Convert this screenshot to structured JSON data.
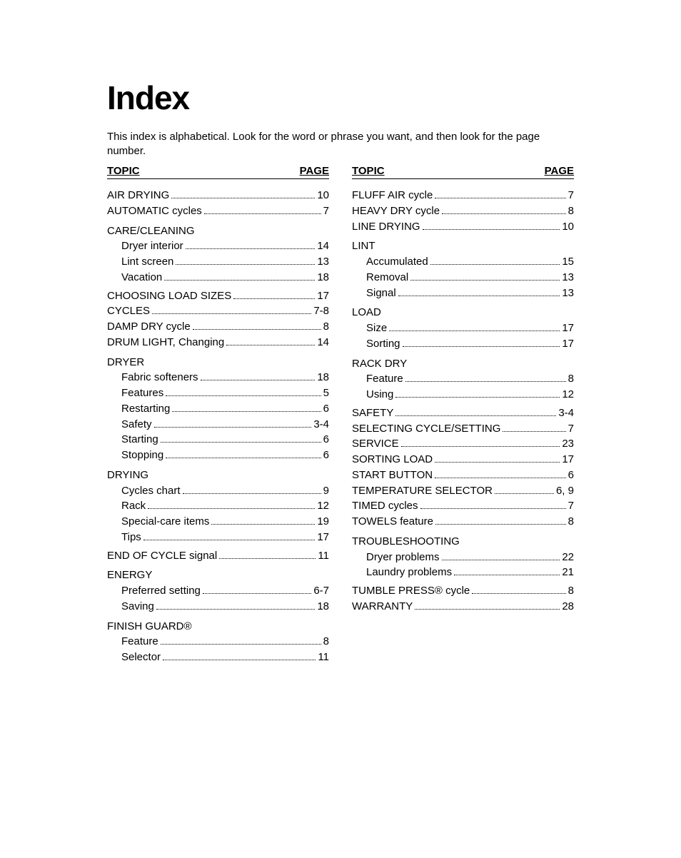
{
  "title": "Index",
  "intro": "This index is alphabetical. Look for the word or phrase you want, and then look for the page number.",
  "header": {
    "topic": "TOPIC",
    "page": "PAGE"
  },
  "left": [
    {
      "t": "entry",
      "label": "AIR DRYING",
      "page": "10"
    },
    {
      "t": "entry",
      "label": "AUTOMATIC cycles",
      "page": "7"
    },
    {
      "t": "head",
      "label": "CARE/CLEANING"
    },
    {
      "t": "sub",
      "label": "Dryer interior",
      "page": "14"
    },
    {
      "t": "sub",
      "label": "Lint screen",
      "page": "13"
    },
    {
      "t": "sub",
      "label": "Vacation",
      "page": "18"
    },
    {
      "t": "entry",
      "label": "CHOOSING LOAD SIZES",
      "page": "17"
    },
    {
      "t": "entry",
      "label": "CYCLES",
      "page": "7-8"
    },
    {
      "t": "entry",
      "label": "DAMP DRY cycle",
      "page": "8"
    },
    {
      "t": "entry",
      "label": "DRUM LIGHT, Changing",
      "page": "14"
    },
    {
      "t": "head",
      "label": "DRYER"
    },
    {
      "t": "sub",
      "label": "Fabric softeners",
      "page": "18"
    },
    {
      "t": "sub",
      "label": "Features",
      "page": "5"
    },
    {
      "t": "sub",
      "label": "Restarting",
      "page": "6"
    },
    {
      "t": "sub",
      "label": "Safety",
      "page": "3-4"
    },
    {
      "t": "sub",
      "label": "Starting",
      "page": "6"
    },
    {
      "t": "sub",
      "label": "Stopping",
      "page": "6"
    },
    {
      "t": "head",
      "label": "DRYING"
    },
    {
      "t": "sub",
      "label": "Cycles chart",
      "page": "9"
    },
    {
      "t": "sub",
      "label": "Rack",
      "page": "12"
    },
    {
      "t": "sub",
      "label": "Special-care items",
      "page": "19"
    },
    {
      "t": "sub",
      "label": "Tips",
      "page": "17"
    },
    {
      "t": "entry",
      "label": "END OF CYCLE signal",
      "page": "11"
    },
    {
      "t": "head",
      "label": "ENERGY"
    },
    {
      "t": "sub",
      "label": "Preferred setting",
      "page": "6-7"
    },
    {
      "t": "sub",
      "label": "Saving",
      "page": "18"
    },
    {
      "t": "head",
      "label": "FINISH GUARD®"
    },
    {
      "t": "sub",
      "label": "Feature",
      "page": "8"
    },
    {
      "t": "sub",
      "label": "Selector",
      "page": "11"
    }
  ],
  "right": [
    {
      "t": "entry",
      "label": "FLUFF AIR cycle",
      "page": "7"
    },
    {
      "t": "entry",
      "label": "HEAVY DRY cycle",
      "page": "8"
    },
    {
      "t": "entry",
      "label": "LINE DRYING",
      "page": "10"
    },
    {
      "t": "head",
      "label": "LINT"
    },
    {
      "t": "sub",
      "label": "Accumulated",
      "page": "15"
    },
    {
      "t": "sub",
      "label": "Removal",
      "page": "13"
    },
    {
      "t": "sub",
      "label": "Signal",
      "page": "13"
    },
    {
      "t": "head",
      "label": "LOAD"
    },
    {
      "t": "sub",
      "label": "Size",
      "page": "17"
    },
    {
      "t": "sub",
      "label": "Sorting",
      "page": "17"
    },
    {
      "t": "head",
      "label": "RACK DRY"
    },
    {
      "t": "sub",
      "label": "Feature",
      "page": "8"
    },
    {
      "t": "sub",
      "label": "Using",
      "page": "12"
    },
    {
      "t": "entry",
      "label": "SAFETY",
      "page": "3-4"
    },
    {
      "t": "entry",
      "label": "SELECTING CYCLE/SETTING",
      "page": "7"
    },
    {
      "t": "entry",
      "label": "SERVICE",
      "page": "23"
    },
    {
      "t": "entry",
      "label": "SORTING LOAD",
      "page": "17"
    },
    {
      "t": "entry",
      "label": "START BUTTON",
      "page": "6"
    },
    {
      "t": "entry",
      "label": "TEMPERATURE SELECTOR",
      "page": "6, 9"
    },
    {
      "t": "entry",
      "label": "TIMED cycles",
      "page": "7"
    },
    {
      "t": "entry",
      "label": "TOWELS feature",
      "page": "8"
    },
    {
      "t": "head",
      "label": "TROUBLESHOOTING"
    },
    {
      "t": "sub",
      "label": "Dryer problems",
      "page": "22"
    },
    {
      "t": "sub",
      "label": "Laundry problems",
      "page": "21"
    },
    {
      "t": "entry",
      "label": "TUMBLE PRESS® cycle",
      "page": "8"
    },
    {
      "t": "entry",
      "label": "WARRANTY",
      "page": "28"
    }
  ]
}
